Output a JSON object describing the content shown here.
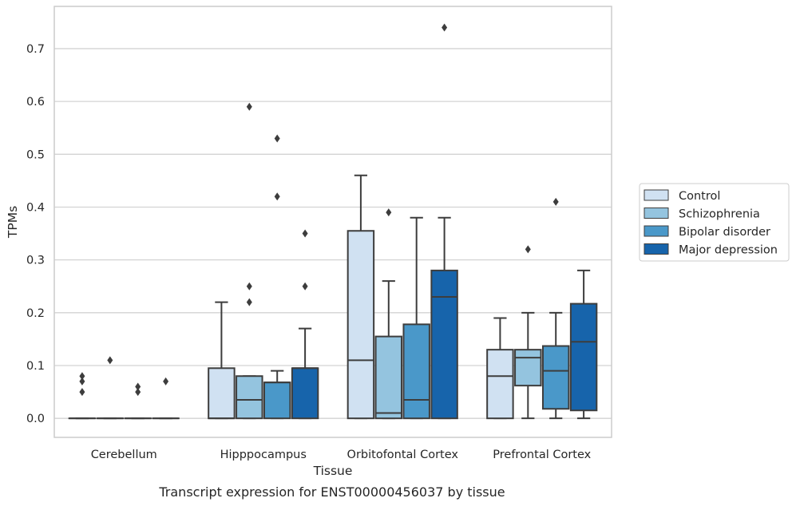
{
  "chart_data": {
    "type": "boxplot",
    "xlabel": "Tissue",
    "ylabel": "TPMs",
    "caption": "Transcript expression for ENST00000456037 by tissue",
    "ylim": [
      -0.036,
      0.78
    ],
    "yticks": [
      "0.0",
      "0.1",
      "0.2",
      "0.3",
      "0.4",
      "0.5",
      "0.6",
      "0.7"
    ],
    "ytick_values": [
      0,
      0.1,
      0.2,
      0.3,
      0.4,
      0.5,
      0.6,
      0.7
    ],
    "grid": "horizontal",
    "legend_position": "right",
    "categories": [
      "Cerebellum",
      "Hipppocampus",
      "Orbitofontal Cortex",
      "Prefrontal Cortex"
    ],
    "series": [
      {
        "name": "Control",
        "color": "#d0e1f2",
        "boxes": [
          {
            "q1": 0,
            "median": 0,
            "q3": 0,
            "whislo": 0,
            "whishi": 0,
            "fliers": [
              0.05,
              0.07,
              0.08
            ]
          },
          {
            "q1": 0,
            "median": 0,
            "q3": 0.095,
            "whislo": 0,
            "whishi": 0.22,
            "fliers": []
          },
          {
            "q1": 0,
            "median": 0.11,
            "q3": 0.355,
            "whislo": 0,
            "whishi": 0.46,
            "fliers": []
          },
          {
            "q1": 0,
            "median": 0.08,
            "q3": 0.13,
            "whislo": 0,
            "whishi": 0.19,
            "fliers": []
          }
        ]
      },
      {
        "name": "Schizophrenia",
        "color": "#94c4df",
        "boxes": [
          {
            "q1": 0,
            "median": 0,
            "q3": 0,
            "whislo": 0,
            "whishi": 0,
            "fliers": [
              0.11
            ]
          },
          {
            "q1": 0,
            "median": 0.035,
            "q3": 0.08,
            "whislo": 0,
            "whishi": 0.08,
            "fliers": [
              0.22,
              0.25,
              0.59
            ]
          },
          {
            "q1": 0,
            "median": 0.01,
            "q3": 0.155,
            "whislo": 0,
            "whishi": 0.26,
            "fliers": [
              0.39
            ]
          },
          {
            "q1": 0.062,
            "median": 0.115,
            "q3": 0.13,
            "whislo": 0,
            "whishi": 0.2,
            "fliers": [
              0.32
            ]
          }
        ]
      },
      {
        "name": "Bipolar disorder",
        "color": "#4a98c9",
        "boxes": [
          {
            "q1": 0,
            "median": 0,
            "q3": 0,
            "whislo": 0,
            "whishi": 0,
            "fliers": [
              0.05,
              0.06
            ]
          },
          {
            "q1": 0,
            "median": 0.068,
            "q3": 0.068,
            "whislo": 0,
            "whishi": 0.09,
            "fliers": [
              0.42,
              0.53
            ]
          },
          {
            "q1": 0,
            "median": 0.035,
            "q3": 0.178,
            "whislo": 0,
            "whishi": 0.38,
            "fliers": []
          },
          {
            "q1": 0.018,
            "median": 0.09,
            "q3": 0.137,
            "whislo": 0,
            "whishi": 0.2,
            "fliers": [
              0.41
            ]
          }
        ]
      },
      {
        "name": "Major depression",
        "color": "#1764ab",
        "boxes": [
          {
            "q1": 0,
            "median": 0,
            "q3": 0,
            "whislo": 0,
            "whishi": 0,
            "fliers": [
              0.07
            ]
          },
          {
            "q1": 0,
            "median": 0.095,
            "q3": 0.095,
            "whislo": 0,
            "whishi": 0.17,
            "fliers": [
              0.25,
              0.35
            ]
          },
          {
            "q1": 0,
            "median": 0.23,
            "q3": 0.28,
            "whislo": 0,
            "whishi": 0.38,
            "fliers": [
              0.74
            ]
          },
          {
            "q1": 0.015,
            "median": 0.145,
            "q3": 0.217,
            "whislo": 0,
            "whishi": 0.28,
            "fliers": []
          }
        ]
      }
    ]
  }
}
